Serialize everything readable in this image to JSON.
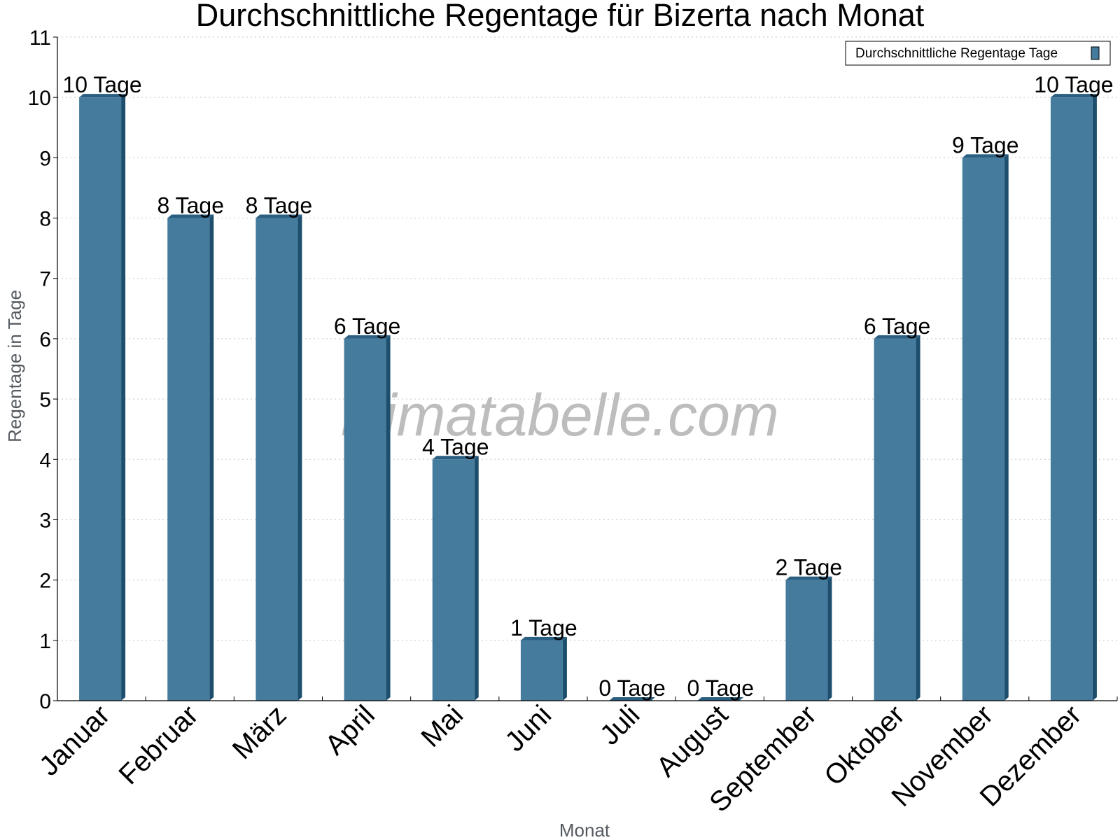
{
  "watermark": "klimatabelle.com",
  "colors": {
    "bar_front": "#457b9d",
    "bar_side": "#1d4e6e",
    "bar_top": "#2a5f82",
    "grid": "#c8c8c8",
    "axis": "#000000"
  },
  "chart_data": {
    "type": "bar",
    "title": "Durchschnittliche Regentage für Bizerta nach Monat",
    "xlabel": "Monat",
    "ylabel": "Regentage in Tage",
    "ylim": [
      0,
      11
    ],
    "yticks": [
      0,
      1,
      2,
      3,
      4,
      5,
      6,
      7,
      8,
      9,
      10,
      11
    ],
    "grid": true,
    "legend_position": "top-right",
    "categories": [
      "Januar",
      "Februar",
      "März",
      "April",
      "Mai",
      "Juni",
      "Juli",
      "August",
      "September",
      "Oktober",
      "November",
      "Dezember"
    ],
    "series": [
      {
        "name": "Durchschnittliche Regentage Tage",
        "values": [
          10,
          8,
          8,
          6,
          4,
          1,
          0,
          0,
          2,
          6,
          9,
          10
        ],
        "labels": [
          "10 Tage",
          "8 Tage",
          "8 Tage",
          "6 Tage",
          "4 Tage",
          "1 Tage",
          "0 Tage",
          "0 Tage",
          "2 Tage",
          "6 Tage",
          "9 Tage",
          "10 Tage"
        ]
      }
    ]
  }
}
